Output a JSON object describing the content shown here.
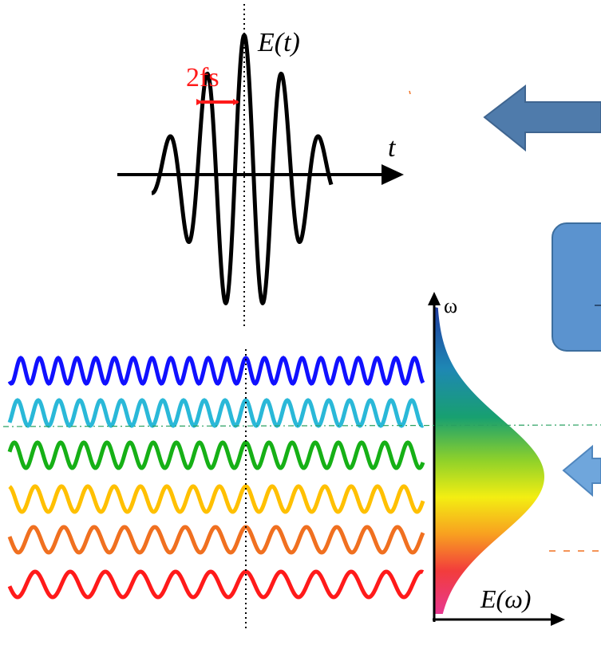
{
  "pulse": {
    "label": "E(t)",
    "time_axis_label": "t",
    "duration_label": "2fs",
    "duration_color": "#ff1a1a"
  },
  "spectrum": {
    "axis_label": "ω",
    "amplitude_label": "E(ω)"
  },
  "waves": [
    {
      "color": "#1010ff"
    },
    {
      "color": "#2ab8d8"
    },
    {
      "color": "#16b016"
    },
    {
      "color": "#ffc000"
    },
    {
      "color": "#f07020"
    },
    {
      "color": "#ff1a1a"
    }
  ],
  "colors": {
    "arrow_dark": "#4f7bab",
    "arrow_light": "#6fa6dc",
    "box_fill": "#5b93cf",
    "box_stroke": "#3c6e9e"
  }
}
